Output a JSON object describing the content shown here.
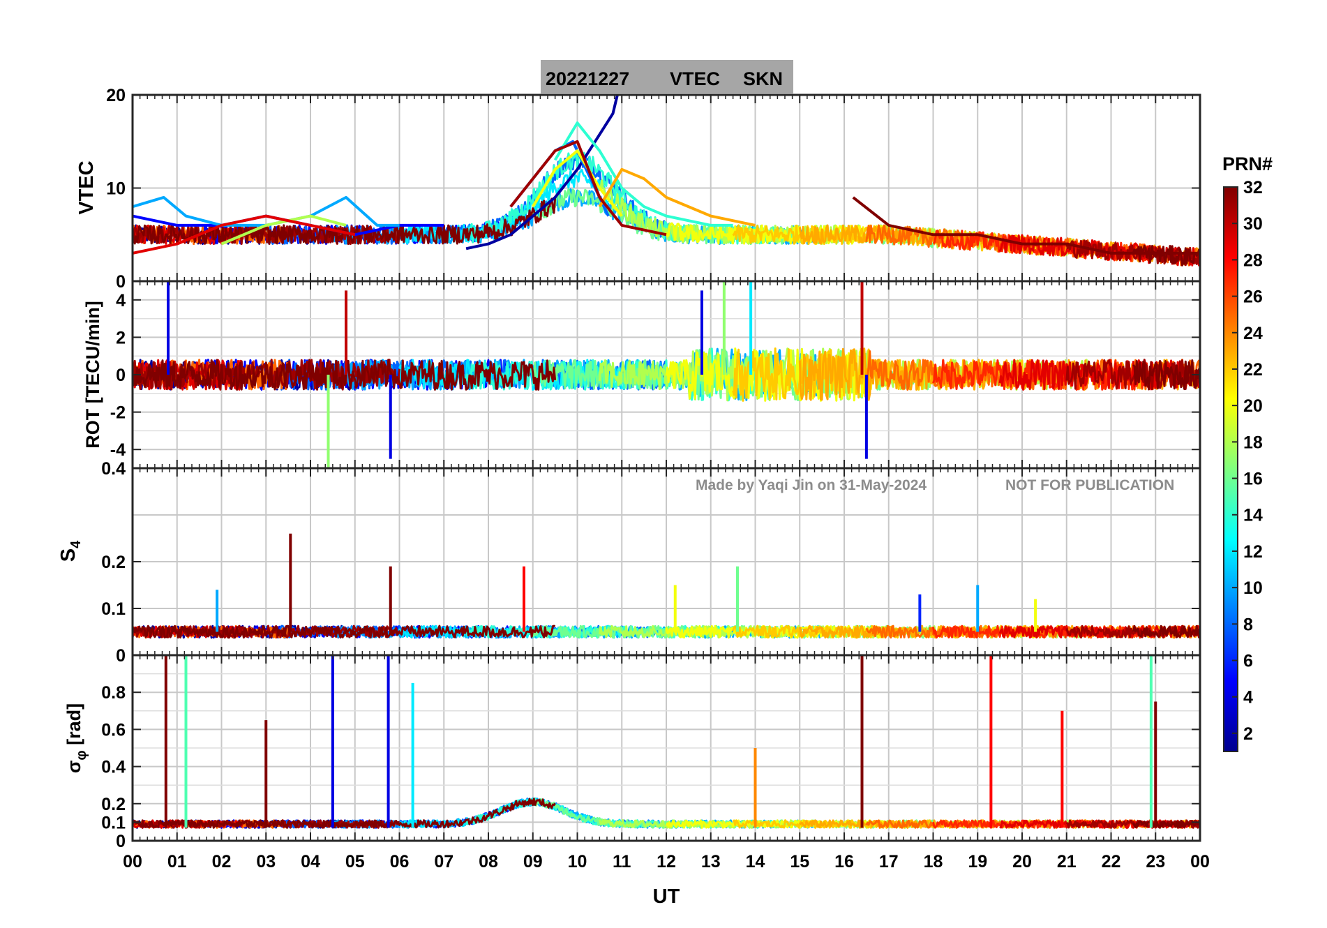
{
  "title": {
    "date": "20221227",
    "parameter": "VTEC",
    "station": "SKN"
  },
  "watermark": {
    "made_by": "Made by Yaqi Jin on 31-May-2024",
    "notice": "NOT FOR PUBLICATION"
  },
  "colorbar": {
    "label": "PRN#",
    "min": 1,
    "max": 32,
    "ticks": [
      "2",
      "4",
      "6",
      "8",
      "10",
      "12",
      "14",
      "16",
      "18",
      "20",
      "22",
      "24",
      "26",
      "28",
      "30",
      "32"
    ]
  },
  "x_axis": {
    "label": "UT",
    "ticks": [
      "00",
      "01",
      "02",
      "03",
      "04",
      "05",
      "06",
      "07",
      "08",
      "09",
      "10",
      "11",
      "12",
      "13",
      "14",
      "15",
      "16",
      "17",
      "18",
      "19",
      "20",
      "21",
      "22",
      "23",
      "00"
    ]
  },
  "chart_data": [
    {
      "type": "line",
      "panel": "vtec",
      "ylabel": "VTEC",
      "ylim": [
        0,
        20
      ],
      "yticks": [
        "0",
        "10",
        "20"
      ],
      "xlim_hours": [
        0,
        24
      ],
      "series": [
        {
          "prn": 2,
          "x": [
            7.5,
            8,
            8.5,
            9,
            9.5,
            10,
            10.4,
            10.8,
            10.9
          ],
          "y": [
            3.5,
            4,
            5,
            7,
            9,
            12,
            15,
            18,
            20
          ]
        },
        {
          "prn": 5,
          "x": [
            0,
            1,
            2,
            3,
            4,
            5,
            6,
            7
          ],
          "y": [
            7,
            6,
            6,
            7,
            6,
            5,
            6,
            6
          ]
        },
        {
          "prn": 8,
          "x": [
            8.5,
            9,
            9.5,
            9.9,
            10.3,
            10.7
          ],
          "y": [
            8,
            11,
            14,
            15,
            11,
            7
          ]
        },
        {
          "prn": 10,
          "x": [
            0,
            0.7,
            1.2,
            2,
            3,
            4,
            4.8,
            5.5,
            6
          ],
          "y": [
            8,
            9,
            7,
            6,
            6,
            7,
            9,
            6,
            6
          ]
        },
        {
          "prn": 14,
          "x": [
            9.5,
            10,
            10.5,
            11,
            11.5,
            12,
            13,
            13.5
          ],
          "y": [
            13,
            17,
            14,
            10,
            8,
            7,
            6,
            6
          ]
        },
        {
          "prn": 18,
          "x": [
            2,
            3,
            4,
            4.8
          ],
          "y": [
            4,
            6,
            7,
            6
          ]
        },
        {
          "prn": 20,
          "x": [
            9,
            9.5,
            10,
            10.5,
            11
          ],
          "y": [
            8,
            12,
            14,
            10,
            7
          ]
        },
        {
          "prn": 23,
          "x": [
            10.5,
            11,
            11.5,
            12,
            13,
            14
          ],
          "y": [
            8,
            12,
            11,
            9,
            7,
            6
          ]
        },
        {
          "prn": 29,
          "x": [
            0,
            1,
            2,
            3,
            4,
            5
          ],
          "y": [
            3,
            4,
            6,
            7,
            6,
            5
          ]
        },
        {
          "prn": 31,
          "x": [
            8.5,
            9,
            9.5,
            10,
            10.5,
            11,
            12
          ],
          "y": [
            8,
            11,
            14,
            15,
            9,
            6,
            5
          ]
        },
        {
          "prn": 32,
          "x": [
            16.2,
            17,
            18,
            19,
            20,
            21,
            22,
            23,
            24
          ],
          "y": [
            9,
            6,
            5,
            5,
            4,
            4,
            3,
            3,
            3
          ]
        }
      ]
    },
    {
      "type": "line",
      "panel": "rot",
      "ylabel": "ROT [TECU/min]",
      "ylim": [
        -5,
        5
      ],
      "yticks": [
        "-4",
        "-2",
        "0",
        "2",
        "4"
      ],
      "xlim_hours": [
        0,
        24
      ],
      "series": [
        {
          "prn": 4,
          "x": [
            0.8,
            4.4,
            5.8,
            12.8,
            16.5
          ],
          "y": [
            5,
            -4.5,
            -4.5,
            4.5,
            -4.5
          ]
        },
        {
          "prn": 12,
          "x": [
            13.9
          ],
          "y": [
            5
          ]
        },
        {
          "prn": 17,
          "x": [
            4.4,
            13.3
          ],
          "y": [
            -5,
            5
          ]
        },
        {
          "prn": 30,
          "x": [
            4.8,
            16.4
          ],
          "y": [
            4.5,
            5
          ]
        }
      ]
    },
    {
      "type": "line",
      "panel": "s4",
      "ylabel": "S4",
      "ylim": [
        0,
        0.4
      ],
      "yticks": [
        "0",
        "0.1",
        "0.2",
        "0.4"
      ],
      "xlim_hours": [
        0,
        24
      ],
      "series": [
        {
          "prn": 32,
          "x": [
            3.55,
            5.8
          ],
          "y": [
            0.26,
            0.19
          ]
        },
        {
          "prn": 28,
          "x": [
            8.8
          ],
          "y": [
            0.19
          ]
        },
        {
          "prn": 16,
          "x": [
            13.6
          ],
          "y": [
            0.19
          ]
        },
        {
          "prn": 10,
          "x": [
            1.9,
            19
          ],
          "y": [
            0.14,
            0.15
          ]
        },
        {
          "prn": 20,
          "x": [
            12.2,
            20.3
          ],
          "y": [
            0.15,
            0.12
          ]
        },
        {
          "prn": 6,
          "x": [
            17.7
          ],
          "y": [
            0.13
          ]
        }
      ]
    },
    {
      "type": "line",
      "panel": "sigma_phi",
      "ylabel": "σφ [rad]",
      "ylim": [
        0,
        1
      ],
      "yticks": [
        "0",
        "0.1",
        "0.2",
        "0.4",
        "0.6",
        "0.8"
      ],
      "xlim_hours": [
        0,
        24
      ],
      "series": [
        {
          "prn": 32,
          "x": [
            0.75,
            3,
            16.4,
            23
          ],
          "y": [
            1,
            0.65,
            1,
            0.75
          ]
        },
        {
          "prn": 28,
          "x": [
            19.3,
            20.9
          ],
          "y": [
            1,
            0.7
          ]
        },
        {
          "prn": 4,
          "x": [
            4.5,
            5.75
          ],
          "y": [
            1,
            1
          ]
        },
        {
          "prn": 12,
          "x": [
            6.3
          ],
          "y": [
            0.85
          ]
        },
        {
          "prn": 15,
          "x": [
            1.2,
            22.9
          ],
          "y": [
            1,
            1
          ]
        },
        {
          "prn": 24,
          "x": [
            14
          ],
          "y": [
            0.5
          ]
        }
      ]
    }
  ]
}
